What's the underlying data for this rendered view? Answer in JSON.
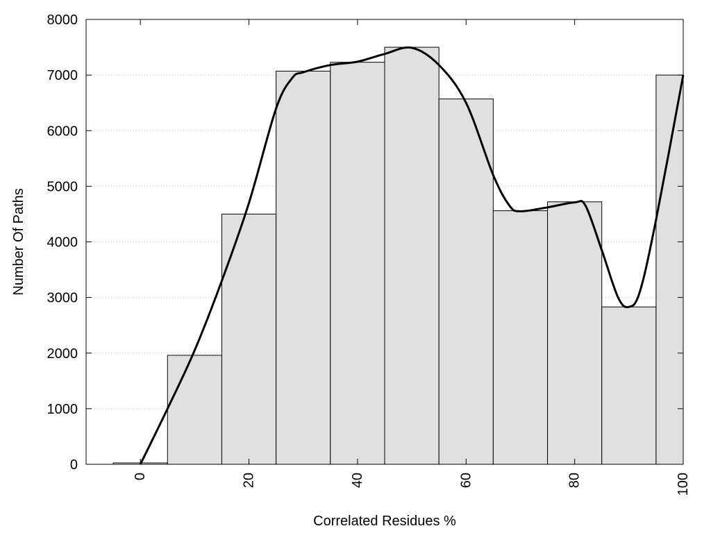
{
  "chart_data": {
    "type": "bar",
    "title": "",
    "xlabel": "Correlated Residues %",
    "ylabel": "Number Of Paths",
    "xlim": [
      -10,
      100
    ],
    "ylim": [
      0,
      8000
    ],
    "x_ticks": [
      0,
      20,
      40,
      60,
      80,
      100
    ],
    "y_ticks": [
      0,
      1000,
      2000,
      3000,
      4000,
      5000,
      6000,
      7000,
      8000
    ],
    "grid": "horizontal dotted",
    "bin_width": 10,
    "bins": [
      {
        "center": 0,
        "value": 25
      },
      {
        "center": 10,
        "value": 1960
      },
      {
        "center": 20,
        "value": 4500
      },
      {
        "center": 30,
        "value": 7070
      },
      {
        "center": 40,
        "value": 7230
      },
      {
        "center": 50,
        "value": 7500
      },
      {
        "center": 60,
        "value": 6570
      },
      {
        "center": 70,
        "value": 4560
      },
      {
        "center": 80,
        "value": 4720
      },
      {
        "center": 90,
        "value": 2830
      },
      {
        "center": 100,
        "value": 7000
      }
    ],
    "smooth_curve": {
      "x": [
        0,
        5,
        10,
        15,
        20,
        25,
        28,
        30,
        35,
        40,
        45,
        50,
        55,
        60,
        65,
        68,
        70,
        75,
        80,
        82,
        85,
        88,
        90,
        92,
        95,
        100
      ],
      "y": [
        0,
        1000,
        2050,
        3300,
        4700,
        6400,
        6950,
        7050,
        7180,
        7240,
        7380,
        7490,
        7180,
        6500,
        5200,
        4650,
        4550,
        4620,
        4710,
        4650,
        3850,
        3000,
        2830,
        3100,
        4400,
        7000
      ]
    },
    "bar_color": "#e0e0e0",
    "line_color": "#000000"
  }
}
